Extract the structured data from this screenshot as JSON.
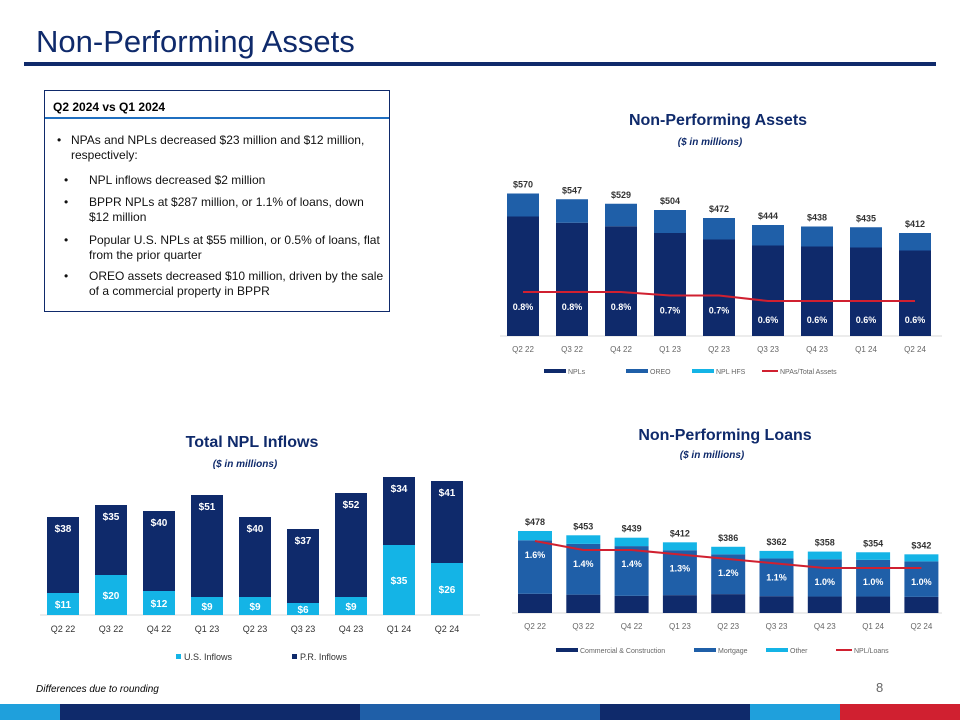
{
  "page": {
    "title": "Non-Performing Assets",
    "footnote": "Differences due to rounding",
    "page_number": "8"
  },
  "summary_box": {
    "heading": "Q2 2024 vs Q1 2024",
    "main_bullet": "NPAs and NPLs decreased $23 million and $12 million, respectively:",
    "sub_bullets": [
      "NPL inflows decreased $2 million",
      "BPPR NPLs at $287 million, or 1.1% of loans, down $12 million",
      "Popular U.S. NPLs at $55 million, or 0.5% of loans, flat from the prior quarter",
      "OREO assets decreased $10 million, driven by the sale of a commercial property in BPPR"
    ]
  },
  "colors": {
    "navy": "#0f2a6b",
    "mid_blue": "#1f5fa8",
    "light_blue": "#14b4e6",
    "red": "#d02030",
    "brand_blue": "#0f2a6b"
  },
  "chart_data": [
    {
      "id": "npa",
      "type": "bar",
      "title": "Non-Performing Assets",
      "subtitle": "($ in millions)",
      "categories": [
        "Q2 22",
        "Q3 22",
        "Q4 22",
        "Q1 23",
        "Q2 23",
        "Q3 23",
        "Q4 23",
        "Q1 24",
        "Q2 24"
      ],
      "series": [
        {
          "name": "NPLs",
          "values": [
            478,
            453,
            439,
            412,
            386,
            362,
            358,
            354,
            342
          ]
        },
        {
          "name": "OREO",
          "values": [
            92,
            94,
            90,
            92,
            86,
            82,
            80,
            81,
            70
          ]
        },
        {
          "name": "NPL HFS",
          "values": [
            0,
            0,
            0,
            0,
            0,
            0,
            0,
            0,
            0
          ]
        }
      ],
      "totals": [
        "$570",
        "$547",
        "$529",
        "$504",
        "$472",
        "$444",
        "$438",
        "$435",
        "$412"
      ],
      "line": {
        "name": "NPAs/Total Assets",
        "values": [
          0.8,
          0.8,
          0.8,
          0.7,
          0.7,
          0.6,
          0.6,
          0.6,
          0.6
        ],
        "labels": [
          "0.8%",
          "0.8%",
          "0.8%",
          "0.7%",
          "0.7%",
          "0.6%",
          "0.6%",
          "0.6%",
          "0.6%"
        ]
      },
      "legend": [
        "NPLs",
        "OREO",
        "NPL HFS",
        "NPAs/Total Assets"
      ]
    },
    {
      "id": "inflows",
      "type": "bar",
      "title": "Total NPL Inflows",
      "subtitle": "($ in millions)",
      "categories": [
        "Q2 22",
        "Q3 22",
        "Q4 22",
        "Q1 23",
        "Q2 23",
        "Q3 23",
        "Q4 23",
        "Q1 24",
        "Q2 24"
      ],
      "series": [
        {
          "name": "U.S. Inflows",
          "values": [
            11,
            20,
            12,
            9,
            9,
            6,
            9,
            35,
            26
          ],
          "labels": [
            "$11",
            "$20",
            "$12",
            "$9",
            "$9",
            "$6",
            "$9",
            "$35",
            "$26"
          ]
        },
        {
          "name": "P.R. Inflows",
          "values": [
            38,
            35,
            40,
            51,
            40,
            37,
            52,
            34,
            41
          ],
          "labels": [
            "$38",
            "$35",
            "$40",
            "$51",
            "$40",
            "$37",
            "$52",
            "$34",
            "$41"
          ]
        }
      ],
      "legend": [
        "U.S. Inflows",
        "P.R. Inflows"
      ]
    },
    {
      "id": "npl",
      "type": "bar",
      "title": "Non-Performing Loans",
      "subtitle": "($ in millions)",
      "categories": [
        "Q2 22",
        "Q3 22",
        "Q4 22",
        "Q1 23",
        "Q2 23",
        "Q3 23",
        "Q4 23",
        "Q1 24",
        "Q2 24"
      ],
      "series": [
        {
          "name": "Commercial & Construction",
          "values": [
            112,
            107,
            100,
            104,
            110,
            98,
            96,
            96,
            94
          ]
        },
        {
          "name": "Mortgage",
          "values": [
            312,
            296,
            290,
            262,
            232,
            220,
            217,
            214,
            207
          ]
        },
        {
          "name": "Other",
          "values": [
            54,
            50,
            49,
            46,
            44,
            44,
            45,
            44,
            41
          ]
        }
      ],
      "totals": [
        "$478",
        "$453",
        "$439",
        "$412",
        "$386",
        "$362",
        "$358",
        "$354",
        "$342"
      ],
      "line": {
        "name": "NPL/Loans",
        "values": [
          1.6,
          1.4,
          1.4,
          1.3,
          1.2,
          1.1,
          1.0,
          1.0,
          1.0
        ],
        "labels": [
          "1.6%",
          "1.4%",
          "1.4%",
          "1.3%",
          "1.2%",
          "1.1%",
          "1.0%",
          "1.0%",
          "1.0%"
        ]
      },
      "legend": [
        "Commercial & Construction",
        "Mortgage",
        "Other",
        "NPL/Loans"
      ]
    }
  ]
}
